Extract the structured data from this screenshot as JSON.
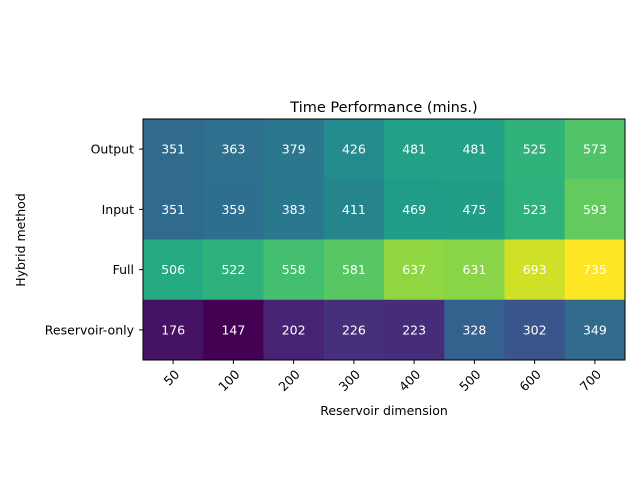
{
  "chart_data": {
    "type": "heatmap",
    "title": "Time Performance (mins.)",
    "xlabel": "Reservoir dimension",
    "ylabel": "Hybrid method",
    "x_categories": [
      "50",
      "100",
      "200",
      "300",
      "400",
      "500",
      "600",
      "700"
    ],
    "y_categories": [
      "Output",
      "Input",
      "Full",
      "Reservoir-only"
    ],
    "values": [
      [
        351,
        363,
        379,
        426,
        481,
        481,
        525,
        573
      ],
      [
        351,
        359,
        383,
        411,
        469,
        475,
        523,
        593
      ],
      [
        506,
        522,
        558,
        581,
        637,
        631,
        693,
        735
      ],
      [
        176,
        147,
        202,
        226,
        223,
        328,
        302,
        349
      ]
    ],
    "colormap": "viridis",
    "value_range": [
      147,
      735
    ],
    "annotation_color": "#ffffff",
    "x_tick_rotation": 45,
    "grid": false
  }
}
